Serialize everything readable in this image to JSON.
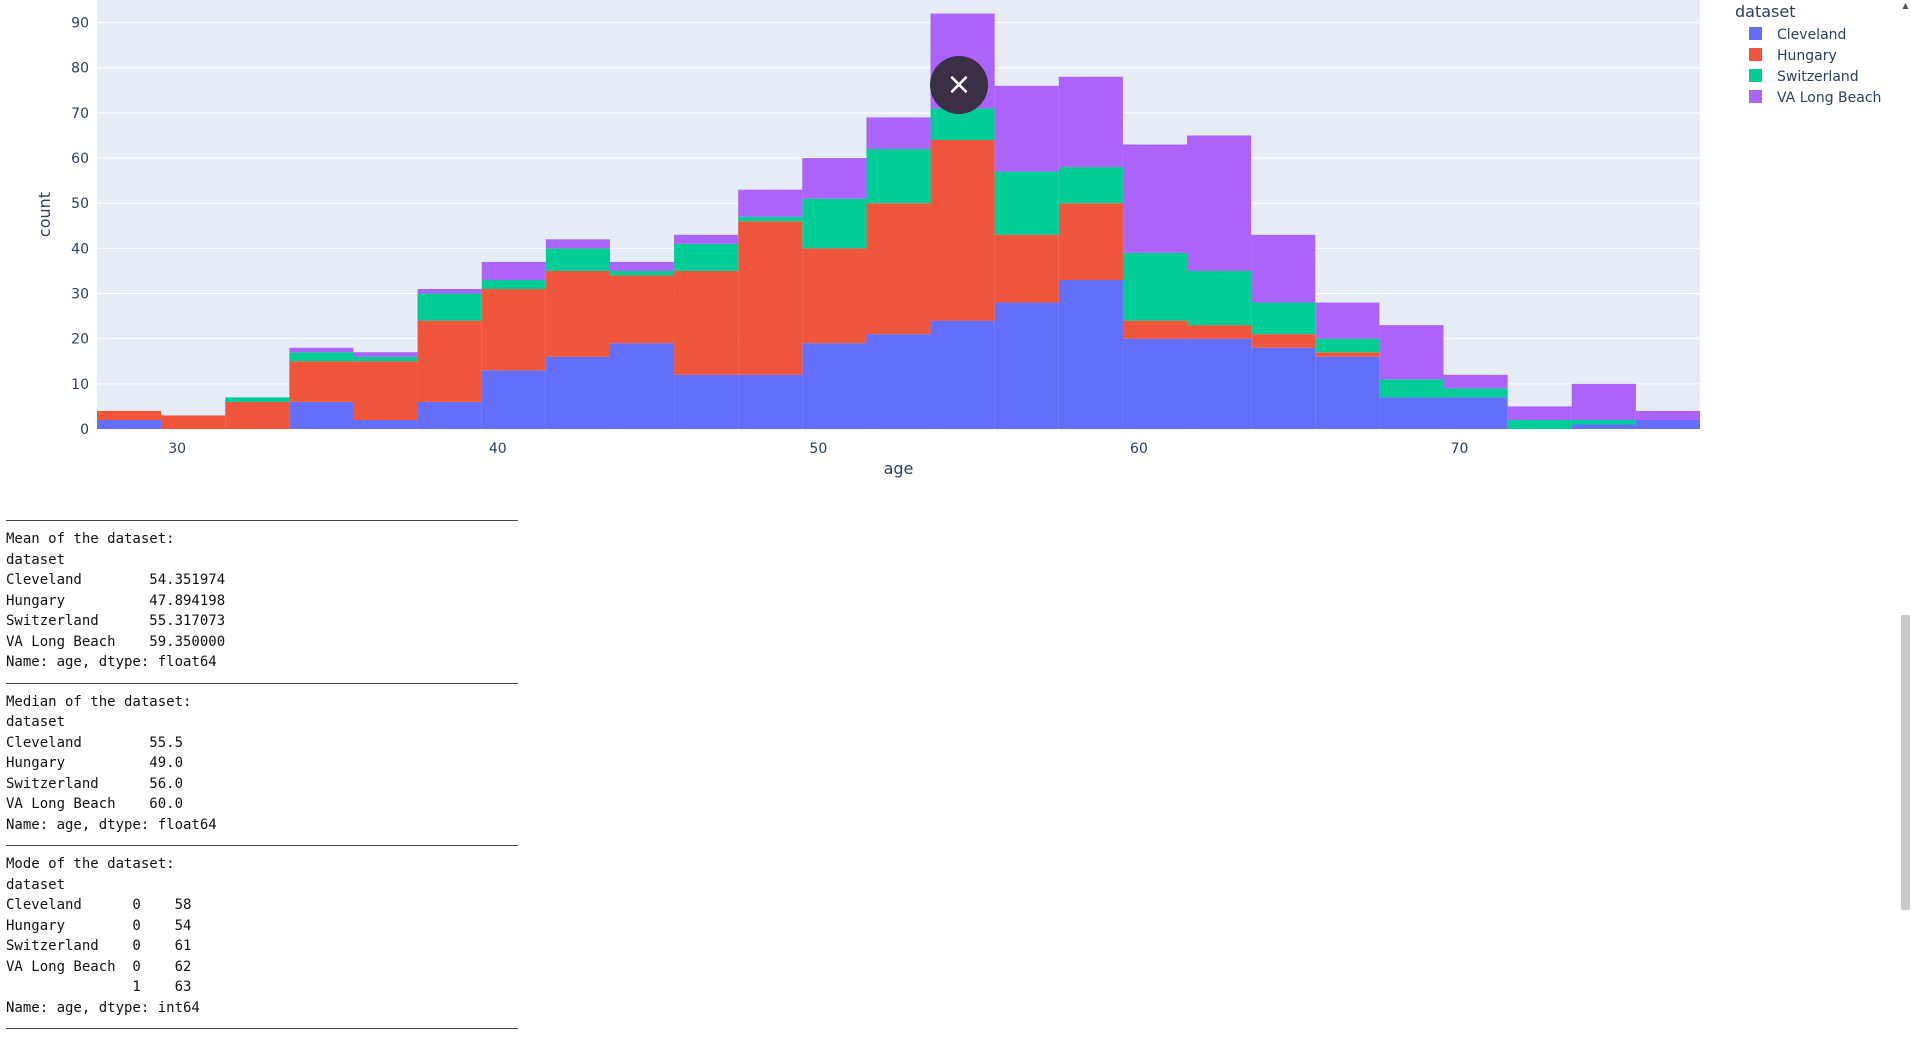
{
  "chart_data": {
    "type": "bar",
    "barmode": "stack",
    "xlabel": "age",
    "ylabel": "count",
    "xlim": [
      27.5,
      77.5
    ],
    "ylim": [
      0,
      95
    ],
    "x_ticks": [
      "30",
      "40",
      "50",
      "60",
      "70"
    ],
    "y_ticks": [
      "0",
      "10",
      "20",
      "30",
      "40",
      "50",
      "60",
      "70",
      "80",
      "90"
    ],
    "grid": true,
    "legend_title": "dataset",
    "legend_position": "top-right",
    "bin_width": 2,
    "x": [
      28.5,
      30.5,
      32.5,
      34.5,
      36.5,
      38.5,
      40.5,
      42.5,
      44.5,
      46.5,
      48.5,
      50.5,
      52.5,
      54.5,
      56.5,
      58.5,
      60.5,
      62.5,
      64.5,
      66.5,
      68.5,
      70.5,
      72.5,
      74.5,
      76.5
    ],
    "series": [
      {
        "name": "Cleveland",
        "color": "#636efa",
        "values": [
          2,
          0,
          0,
          6,
          2,
          6,
          13,
          16,
          19,
          12,
          12,
          19,
          21,
          24,
          28,
          33,
          20,
          20,
          18,
          16,
          7,
          7,
          0,
          1,
          2
        ]
      },
      {
        "name": "Hungary",
        "color": "#ef553b",
        "values": [
          2,
          3,
          6,
          9,
          13,
          18,
          18,
          19,
          15,
          23,
          34,
          21,
          29,
          40,
          15,
          17,
          4,
          3,
          3,
          1,
          0,
          0,
          0,
          0,
          0
        ]
      },
      {
        "name": "Switzerland",
        "color": "#00cc96",
        "values": [
          0,
          0,
          1,
          2,
          1,
          6,
          2,
          5,
          1,
          6,
          1,
          11,
          12,
          7,
          14,
          8,
          15,
          12,
          7,
          3,
          4,
          2,
          2,
          1,
          0
        ]
      },
      {
        "name": "VA Long Beach",
        "color": "#ab63fa",
        "values": [
          0,
          0,
          0,
          1,
          1,
          1,
          4,
          2,
          2,
          2,
          6,
          9,
          7,
          21,
          19,
          20,
          24,
          30,
          15,
          8,
          12,
          3,
          3,
          8,
          2
        ]
      }
    ]
  },
  "overlay": {
    "close_icon": "×"
  },
  "output": {
    "blocks": [
      [
        "Mean of the dataset:",
        "dataset",
        "Cleveland        54.351974",
        "Hungary          47.894198",
        "Switzerland      55.317073",
        "VA Long Beach    59.350000",
        "Name: age, dtype: float64"
      ],
      [
        "Median of the dataset:",
        "dataset",
        "Cleveland        55.5",
        "Hungary          49.0",
        "Switzerland      56.0",
        "VA Long Beach    60.0",
        "Name: age, dtype: float64"
      ],
      [
        "Mode of the dataset:",
        "dataset",
        "Cleveland      0    58",
        "Hungary        0    54",
        "Switzerland    0    61",
        "VA Long Beach  0    62",
        "               1    63",
        "Name: age, dtype: int64"
      ]
    ]
  }
}
